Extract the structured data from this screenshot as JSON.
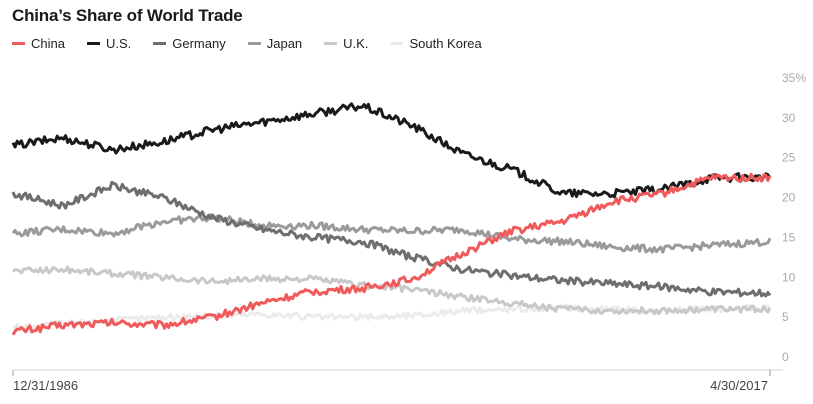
{
  "chart_data": {
    "type": "line",
    "title": "China’s Share of World Trade",
    "x_range": [
      "12/31/1986",
      "4/30/2017"
    ],
    "x_labels": [
      "12/31/1986",
      "4/30/2017"
    ],
    "y_ticks": [
      {
        "value": 0,
        "label": "0"
      },
      {
        "value": 5,
        "label": "5"
      },
      {
        "value": 10,
        "label": "10"
      },
      {
        "value": 15,
        "label": "15"
      },
      {
        "value": 20,
        "label": "20"
      },
      {
        "value": 25,
        "label": "25"
      },
      {
        "value": 30,
        "label": "30"
      },
      {
        "value": 35,
        "label": "35%"
      }
    ],
    "ylim": [
      0,
      35
    ],
    "grid": false,
    "legend_position": "top-left",
    "x_years": [
      1987,
      1989,
      1991,
      1993,
      1995,
      1997,
      1999,
      2001,
      2003,
      2005,
      2007,
      2009,
      2011,
      2013,
      2015,
      2017.33
    ],
    "series": [
      {
        "name": "China",
        "color": "#f05a5a",
        "values": [
          3.2,
          4.0,
          4.3,
          4.0,
          5.0,
          6.8,
          8.2,
          8.6,
          9.8,
          13.0,
          15.8,
          17.0,
          19.5,
          20.5,
          22.5,
          22.5
        ]
      },
      {
        "name": "U.S.",
        "color": "#1a1a1a",
        "values": [
          26.5,
          27.5,
          26.0,
          27.0,
          28.5,
          29.5,
          30.5,
          31.5,
          29.0,
          25.5,
          23.5,
          20.5,
          20.5,
          21.0,
          22.5,
          22.5
        ]
      },
      {
        "name": "Germany",
        "color": "#6e6e6e",
        "values": [
          20.5,
          19.0,
          21.5,
          20.0,
          17.5,
          16.0,
          15.0,
          14.5,
          12.5,
          11.0,
          10.2,
          9.6,
          9.2,
          8.8,
          8.2,
          8.0
        ]
      },
      {
        "name": "Japan",
        "color": "#9a9a9a",
        "values": [
          15.5,
          16.0,
          15.5,
          17.0,
          17.5,
          16.5,
          16.5,
          16.0,
          15.8,
          16.0,
          14.8,
          14.5,
          13.8,
          13.5,
          14.0,
          14.5
        ]
      },
      {
        "name": "U.K.",
        "color": "#c8c8c8",
        "values": [
          10.8,
          11.0,
          10.5,
          10.0,
          9.5,
          9.8,
          9.8,
          9.0,
          8.5,
          7.5,
          6.8,
          6.0,
          5.8,
          5.8,
          6.0,
          6.0
        ]
      },
      {
        "name": "South Korea",
        "color": "#ebebeb",
        "values": [
          3.8,
          4.2,
          4.6,
          5.0,
          5.2,
          5.4,
          5.0,
          5.0,
          5.2,
          5.8,
          6.0,
          6.2,
          6.0,
          5.8,
          6.0,
          6.2
        ]
      }
    ]
  }
}
